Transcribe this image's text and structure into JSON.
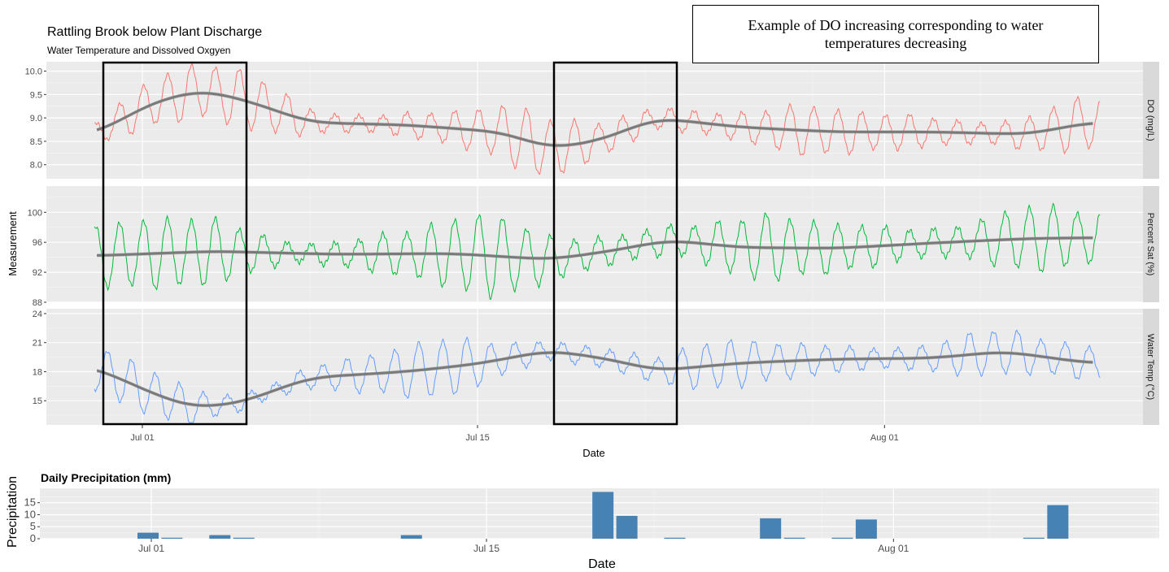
{
  "colors": {
    "do": "#F8766D",
    "sat": "#00BA38",
    "temp": "#619CFF",
    "smooth": "#7a7a7a",
    "precip": "#4682B4",
    "panel": "#EBEBEB",
    "strip": "#D9D9D9"
  },
  "annotation": "Example of DO increasing corresponding to water temperatures decreasing",
  "chart_data": [
    {
      "type": "line",
      "title": "Rattling Brook below Plant Discharge",
      "subtitle": "Water Temperature and Dissolved Oxgyen",
      "xlabel": "Date",
      "ylabel": "Measurement",
      "x_ticks": [
        "Jul 01",
        "Jul 15",
        "Aug 01"
      ],
      "xlim": [
        "2021-06-29",
        "2021-08-10"
      ],
      "facets": [
        {
          "strip": "DO (mg/L)",
          "ylim": [
            7.7,
            10.2
          ],
          "ticks": [
            "8.0",
            "8.5",
            "9.0",
            "9.5",
            "10.0"
          ],
          "mean_days": [
            0,
            2.5,
            4.5,
            6.5,
            9,
            13,
            17,
            19,
            21,
            23.5,
            27,
            31,
            35,
            39,
            41.5
          ],
          "mean_values": [
            8.65,
            9.35,
            9.6,
            9.35,
            8.9,
            8.85,
            8.7,
            8.35,
            8.5,
            9.0,
            8.8,
            8.7,
            8.7,
            8.65,
            8.9
          ],
          "amplitude": 0.5
        },
        {
          "strip": "Percent Sat (%)",
          "ylim": [
            88,
            103.5
          ],
          "ticks": [
            "88",
            "92",
            "96",
            "100"
          ],
          "mean_days": [
            0,
            5,
            10,
            15,
            19,
            21.5,
            24,
            27,
            31,
            35,
            39,
            41.5
          ],
          "mean_values": [
            94.2,
            94.8,
            94.4,
            94.5,
            93.7,
            94.8,
            96.3,
            95.3,
            95.2,
            95.9,
            96.5,
            96.6
          ],
          "amplitude": 4
        },
        {
          "strip": "Water Temp (°C)",
          "ylim": [
            12.5,
            24.5
          ],
          "ticks": [
            "15",
            "18",
            "21",
            "24"
          ],
          "mean_days": [
            0,
            2,
            4,
            6,
            9,
            13,
            16,
            19,
            21.5,
            23.5,
            27,
            31,
            35,
            38,
            41.5
          ],
          "mean_values": [
            18.5,
            16.2,
            14.3,
            14.7,
            17.4,
            18.0,
            18.8,
            20.2,
            19.3,
            18.1,
            18.9,
            19.3,
            19.4,
            20.1,
            18.9
          ],
          "amplitude": 2.2
        }
      ],
      "highlight_boxes": [
        [
          "2021-06-29",
          "2021-07-05"
        ],
        [
          "2021-07-18",
          "2021-07-23"
        ]
      ]
    },
    {
      "type": "bar",
      "title": "Daily Precipitation (mm)",
      "xlabel": "Date",
      "ylabel": "Precipitation",
      "x_ticks": [
        "Jul 01",
        "Jul 15",
        "Aug 01"
      ],
      "ylim": [
        0,
        21
      ],
      "y_ticks": [
        "0",
        "5",
        "10",
        "15"
      ],
      "dates": [
        "2021-07-01",
        "2021-07-02",
        "2021-07-04",
        "2021-07-05",
        "2021-07-12",
        "2021-07-20",
        "2021-07-21",
        "2021-07-23",
        "2021-07-27",
        "2021-07-28",
        "2021-07-30",
        "2021-07-31",
        "2021-08-07",
        "2021-08-08"
      ],
      "values": [
        2.5,
        0.4,
        1.5,
        0.4,
        1.5,
        19.5,
        9.5,
        0.4,
        8.5,
        0.4,
        0.4,
        8,
        0.4,
        14
      ]
    }
  ]
}
